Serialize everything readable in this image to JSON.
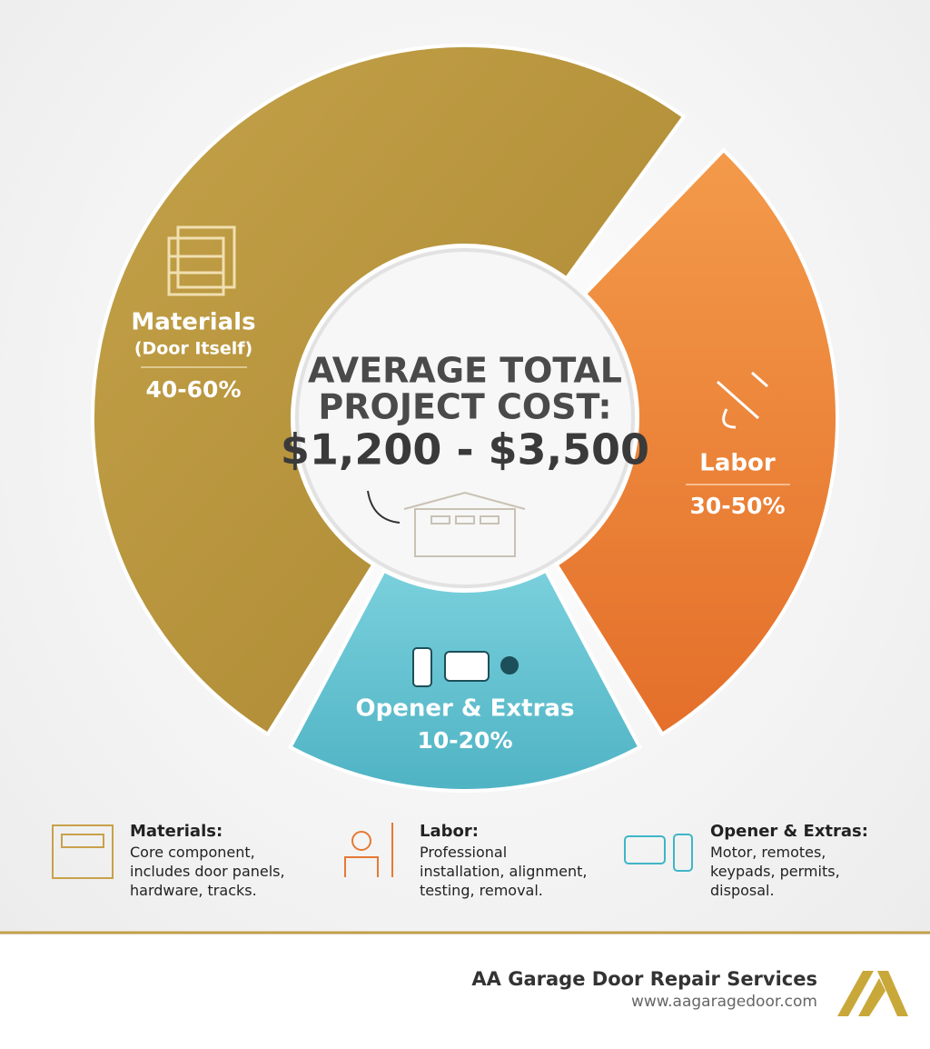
{
  "center": {
    "title_line1": "AVERAGE TOTAL",
    "title_line2": "PROJECT COST:",
    "cost": "$1,200 - $3,500"
  },
  "segments": [
    {
      "label": "Materials",
      "sublabel": "(Door Itself)",
      "share": "40-60%"
    },
    {
      "label": "Labor",
      "share": "30-50%"
    },
    {
      "label": "Opener & Extras",
      "share": "10-20%"
    }
  ],
  "legend": [
    {
      "title": "Materials:",
      "lines": [
        "Core component,",
        "includes door panels,",
        "hardware, tracks."
      ]
    },
    {
      "title": "Labor:",
      "lines": [
        "Professional",
        "installation, alignment,",
        "testing, removal."
      ]
    },
    {
      "title": "Opener & Extras:",
      "lines": [
        "Motor, remotes,",
        "keypads, permits,",
        "disposal."
      ]
    }
  ],
  "footer": {
    "company": "AA Garage Door Repair Services",
    "website": "www.aagaragedoor.com"
  }
}
